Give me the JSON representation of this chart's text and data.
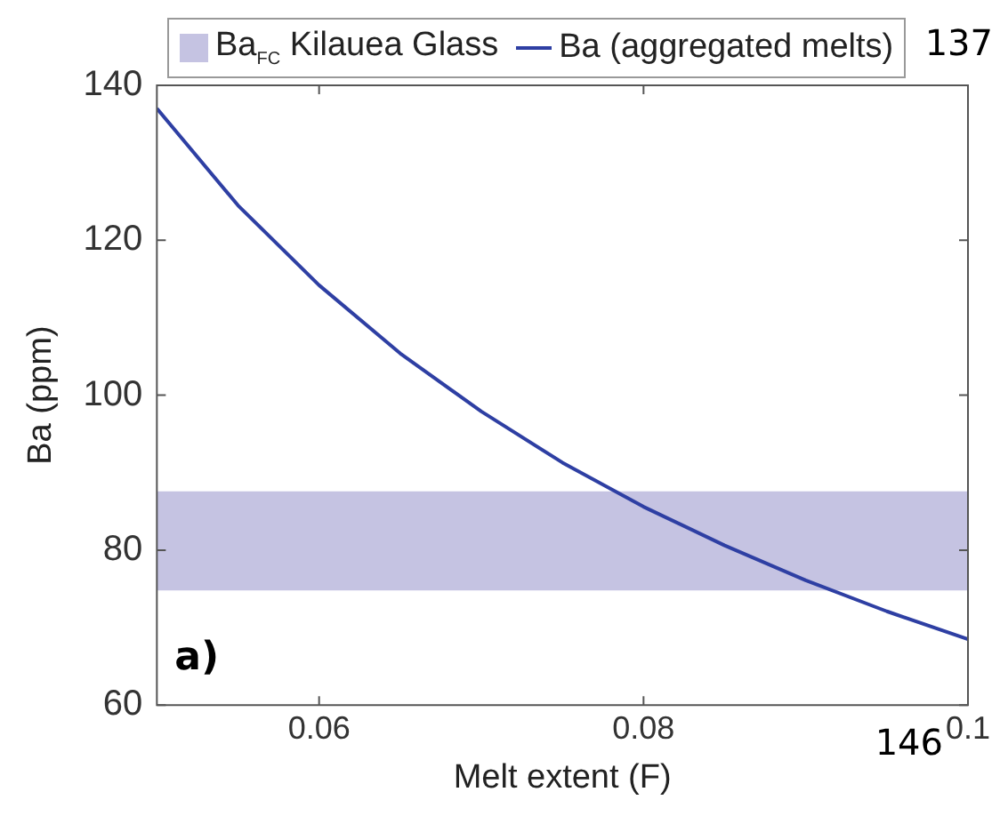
{
  "chart_data": {
    "type": "line",
    "xlabel": "Melt extent (F)",
    "ylabel": "Ba (ppm)",
    "x": [
      0.05,
      0.055,
      0.06,
      0.065,
      0.07,
      0.075,
      0.08,
      0.085,
      0.09,
      0.095,
      0.1
    ],
    "series": [
      {
        "name": "Ba (aggregated melts)",
        "color": "#2e3fa3",
        "values": [
          137,
          124.5,
          114.2,
          105.4,
          97.9,
          91.3,
          85.6,
          80.6,
          76.1,
          72.1,
          68.5
        ]
      }
    ],
    "bands": [
      {
        "axis": "y",
        "from": 74.8,
        "to": 87.6,
        "label": "Ba$_{FC}$ Kilauea Glass",
        "color": "#c5c3e2"
      }
    ],
    "xlim": [
      0.05,
      0.1
    ],
    "xticks": [
      0.06,
      0.08,
      0.1
    ],
    "ylim": [
      60,
      140
    ],
    "yticks": [
      60,
      80,
      100,
      120,
      140
    ],
    "grid": false,
    "legend": "top",
    "marker": "none",
    "line_style": "solid",
    "annotations": [
      "a)",
      "137",
      "146"
    ]
  }
}
